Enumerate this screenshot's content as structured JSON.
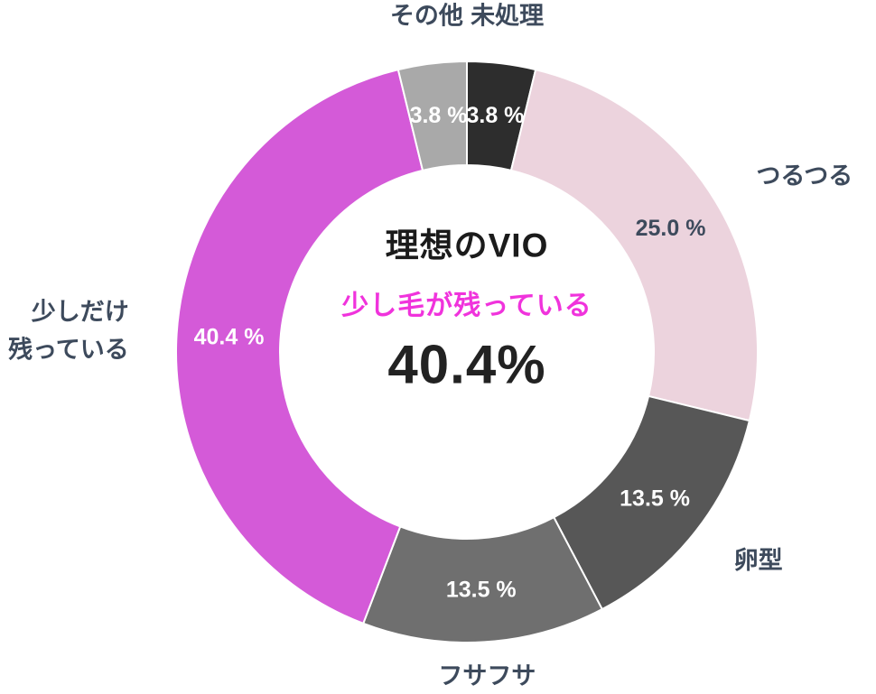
{
  "chart_data": {
    "type": "pie",
    "subtype": "donut",
    "title": "理想のVIO",
    "legend_position": "outside-labels",
    "label_color": "#3d4a5c",
    "center": {
      "title": "理想のVIO",
      "title_color": "#1b1b1b",
      "subtitle": "少し毛が残っている",
      "subtitle_color": "#f033dc",
      "value": "40.4%",
      "value_color": "#222222"
    },
    "slices": [
      {
        "label": "未処理",
        "value": 3.8,
        "display": "3.8 %",
        "color": "#2d2d2d",
        "pct_color": "#ffffff"
      },
      {
        "label": "つるつる",
        "value": 25.0,
        "display": "25.0 %",
        "color": "#ecd3dd",
        "pct_color": "#3d4a5c"
      },
      {
        "label": "卵型",
        "value": 13.5,
        "display": "13.5 %",
        "color": "#575757",
        "pct_color": "#ffffff"
      },
      {
        "label": "フサフサ",
        "value": 13.5,
        "display": "13.5 %",
        "color": "#6f6f6f",
        "pct_color": "#ffffff"
      },
      {
        "label": "少しだけ\n残っている",
        "value": 40.4,
        "display": "40.4 %",
        "color": "#d45ad8",
        "pct_color": "#ffffff"
      },
      {
        "label": "その他",
        "value": 3.8,
        "display": "3.8 %",
        "color": "#a9a9a9",
        "pct_color": "#ffffff"
      }
    ]
  }
}
